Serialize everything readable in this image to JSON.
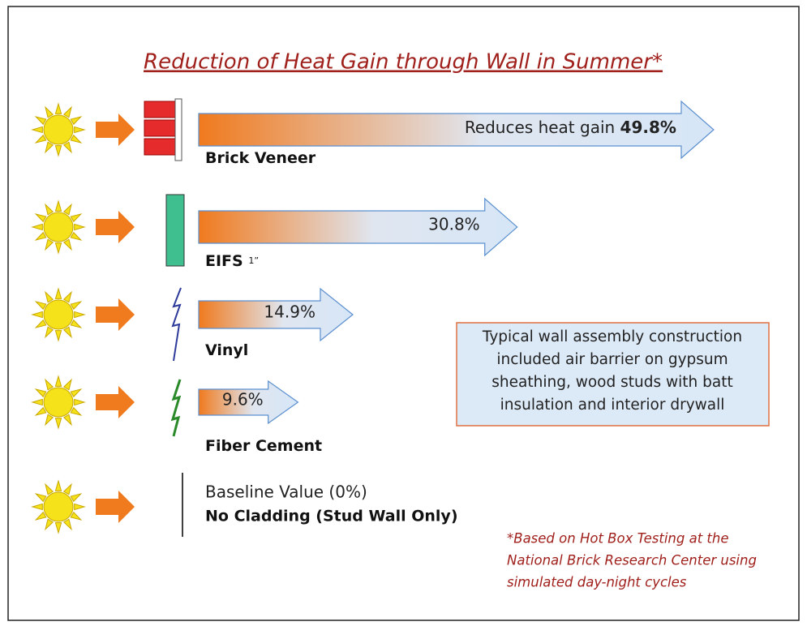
{
  "title": "Reduction of Heat Gain through Wall in Summer*",
  "items": [
    {
      "name": "Brick Veneer",
      "prefix": "Reduces heat gain",
      "value": 49.8,
      "value_label": "49.8%"
    },
    {
      "name": "EIFS",
      "note": "1”",
      "value": 30.8,
      "value_label": "30.8%"
    },
    {
      "name": "Vinyl",
      "value": 14.9,
      "value_label": "14.9%"
    },
    {
      "name": "Fiber Cement",
      "value": 9.6,
      "value_label": "9.6%"
    }
  ],
  "baseline": {
    "label": "Baseline Value (0%)",
    "name": "No Cladding (Stud Wall Only)"
  },
  "info_box": [
    "Typical wall assembly construction",
    "included air barrier on gypsum",
    "sheathing, wood studs with batt",
    "insulation and interior drywall"
  ],
  "footnote": [
    "*Based on Hot Box Testing at the",
    "National Brick Research Center using",
    "simulated day-night cycles"
  ]
}
